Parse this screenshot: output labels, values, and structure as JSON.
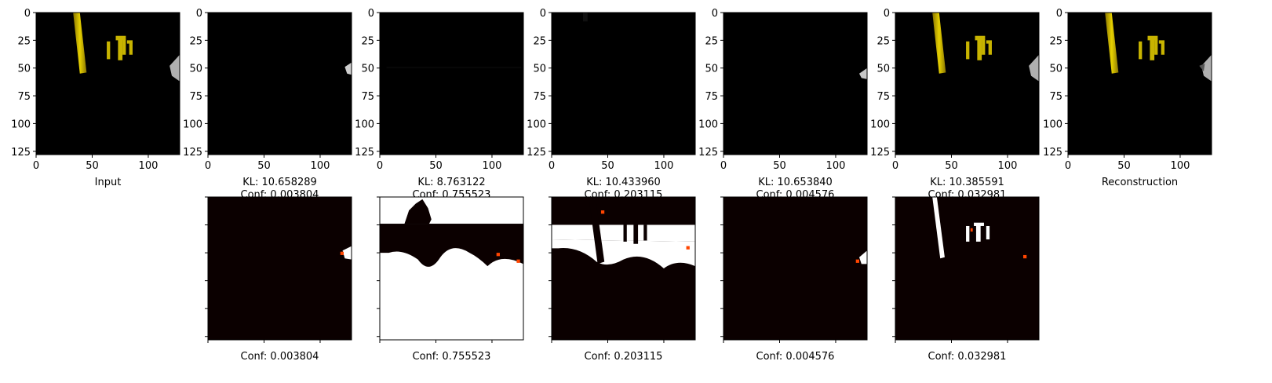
{
  "figure": {
    "background": "#ffffff",
    "image_colors": {
      "background": "#000000",
      "object": "#c8b400",
      "object_dark": "#7a6a00",
      "gripper": "#b0b0b0",
      "mask_dark": "#0b0000",
      "mask_bright": "#ffffff",
      "mask_mid": "#ff4500"
    }
  },
  "chart_data": [
    {
      "type": "image",
      "panel": "top-1",
      "xlabel": "Input",
      "content": "rgb-scene",
      "x_ticks": [
        "0",
        "50",
        "100"
      ],
      "y_ticks": [
        "0",
        "25",
        "50",
        "75",
        "100",
        "125"
      ],
      "extent": [
        0,
        128
      ]
    },
    {
      "type": "image",
      "panel": "top-2",
      "xlabel": [
        "KL: 10.658289",
        "Conf: 0.003804"
      ],
      "content": "component-1",
      "x_ticks": [
        "0",
        "50",
        "100"
      ],
      "y_ticks": [
        "0",
        "25",
        "50",
        "75",
        "100",
        "125"
      ],
      "kl": 10.658289,
      "conf": 0.003804
    },
    {
      "type": "image",
      "panel": "top-3",
      "xlabel": [
        "KL: 8.763122",
        "Conf: 0.755523"
      ],
      "content": "component-2",
      "x_ticks": [
        "0",
        "50",
        "100"
      ],
      "y_ticks": [
        "0",
        "25",
        "50",
        "75",
        "100",
        "125"
      ],
      "kl": 8.763122,
      "conf": 0.755523
    },
    {
      "type": "image",
      "panel": "top-4",
      "xlabel": [
        "KL: 10.433960",
        "Conf: 0.203115"
      ],
      "content": "component-3",
      "x_ticks": [
        "0",
        "50",
        "100"
      ],
      "y_ticks": [
        "0",
        "25",
        "50",
        "75",
        "100",
        "125"
      ],
      "kl": 10.43396,
      "conf": 0.203115
    },
    {
      "type": "image",
      "panel": "top-5",
      "xlabel": [
        "KL: 10.653840",
        "Conf: 0.004576"
      ],
      "content": "component-4",
      "x_ticks": [
        "0",
        "50",
        "100"
      ],
      "y_ticks": [
        "0",
        "25",
        "50",
        "75",
        "100",
        "125"
      ],
      "kl": 10.65384,
      "conf": 0.004576
    },
    {
      "type": "image",
      "panel": "top-6",
      "xlabel": [
        "KL: 10.385591",
        "Conf: 0.032981"
      ],
      "content": "component-5",
      "x_ticks": [
        "0",
        "50",
        "100"
      ],
      "y_ticks": [
        "0",
        "25",
        "50",
        "75",
        "100",
        "125"
      ],
      "kl": 10.385591,
      "conf": 0.032981
    },
    {
      "type": "image",
      "panel": "top-7",
      "xlabel": "Reconstruction",
      "content": "rgb-reconstruction",
      "x_ticks": [
        "0",
        "50",
        "100"
      ],
      "y_ticks": [
        "0",
        "25",
        "50",
        "75",
        "100",
        "125"
      ]
    },
    {
      "type": "heatmap",
      "panel": "bottom-1",
      "xlabel": "Conf: 0.003804",
      "content": "mask-1",
      "conf": 0.003804
    },
    {
      "type": "heatmap",
      "panel": "bottom-2",
      "xlabel": "Conf: 0.755523",
      "content": "mask-2",
      "conf": 0.755523
    },
    {
      "type": "heatmap",
      "panel": "bottom-3",
      "xlabel": "Conf: 0.203115",
      "content": "mask-3",
      "conf": 0.203115
    },
    {
      "type": "heatmap",
      "panel": "bottom-4",
      "xlabel": "Conf: 0.004576",
      "content": "mask-4",
      "conf": 0.004576
    },
    {
      "type": "heatmap",
      "panel": "bottom-5",
      "xlabel": "Conf: 0.032981",
      "content": "mask-5",
      "conf": 0.032981
    }
  ]
}
